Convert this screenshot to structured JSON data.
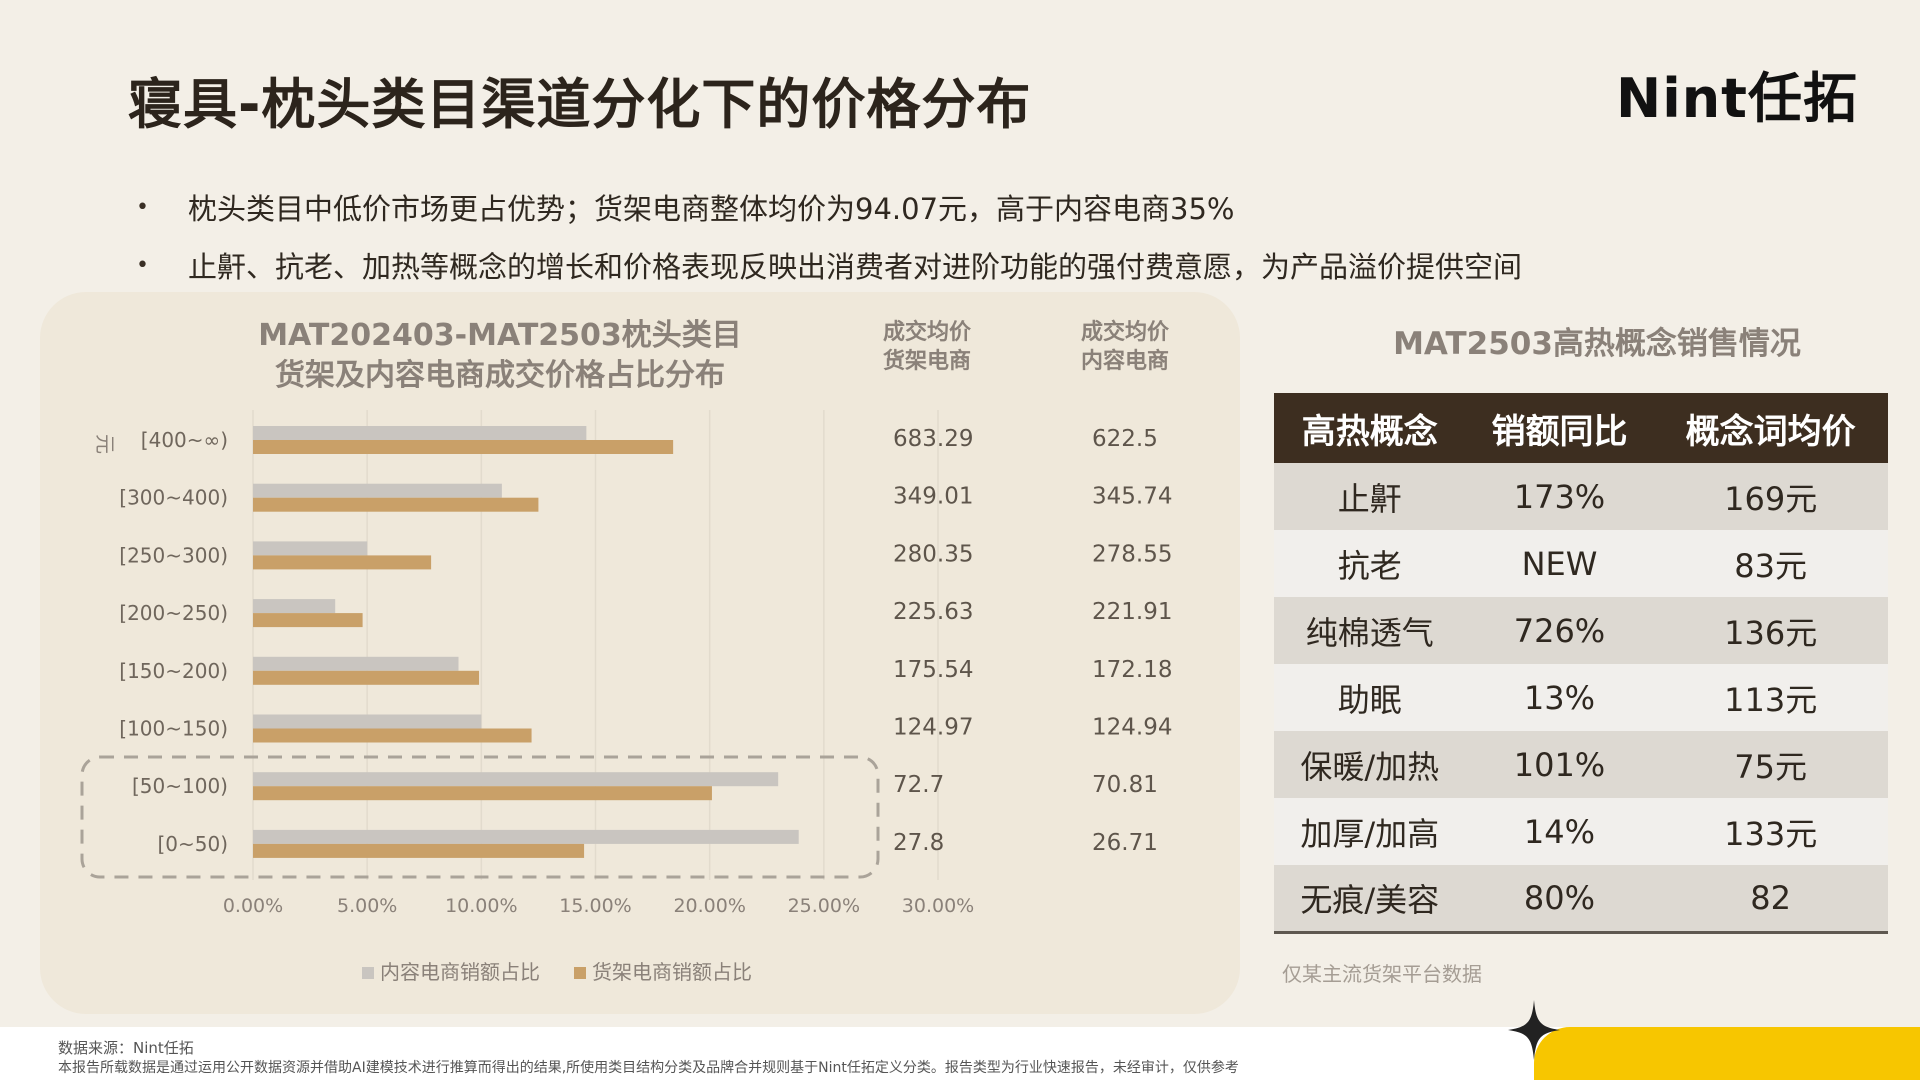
{
  "header": {
    "title": "寝具-枕头类目渠道分化下的价格分布",
    "logo": "Nint任拓"
  },
  "bullets": [
    "枕头类目中低价市场更占优势；货架电商整体均价为94.07元，高于内容电商35%",
    "止鼾、抗老、加热等概念的增长和价格表现反映出消费者对进阶功能的强付费意愿，为产品溢价提供空间"
  ],
  "chart_data": {
    "type": "bar",
    "orientation": "horizontal",
    "title": "MAT202403-MAT2503枕头类目货架及内容电商成交价格占比分布",
    "title_lines": [
      "MAT202403-MAT2503枕头类目",
      "货架及内容电商成交价格占比分布"
    ],
    "ylabel": "元",
    "categories": [
      "[400~∞)",
      "[300~400)",
      "[250~300)",
      "[200~250)",
      "[150~200)",
      "[100~150)",
      "[50~100)",
      "[0~50)"
    ],
    "series": [
      {
        "name": "内容电商销额占比",
        "color": "#c9c5c0",
        "values": [
          14.6,
          10.9,
          5.0,
          3.6,
          9.0,
          10.0,
          23.0,
          23.9
        ]
      },
      {
        "name": "货架电商销额占比",
        "color": "#c9a068",
        "values": [
          18.4,
          12.5,
          7.8,
          4.8,
          9.9,
          12.2,
          20.1,
          14.5
        ]
      }
    ],
    "xlim": [
      0,
      30
    ],
    "xticks": [
      "0.00%",
      "5.00%",
      "10.00%",
      "15.00%",
      "20.00%",
      "25.00%",
      "30.00%"
    ],
    "legend_position": "bottom",
    "grid": true,
    "annotation": "dashed box highlighting [50~100) and [0~50)",
    "columns": [
      {
        "label_line1": "成交均价",
        "label_line2": "货架电商",
        "values": [
          "683.29",
          "349.01",
          "280.35",
          "225.63",
          "175.54",
          "124.97",
          "72.7",
          "27.8"
        ]
      },
      {
        "label_line1": "成交均价",
        "label_line2": "内容电商",
        "values": [
          "622.5",
          "345.74",
          "278.55",
          "221.91",
          "172.18",
          "124.94",
          "70.81",
          "26.71"
        ]
      }
    ]
  },
  "concept_table": {
    "title": "MAT2503高热概念销售情况",
    "headers": [
      "高热概念",
      "销额同比",
      "概念词均价"
    ],
    "rows": [
      [
        "止鼾",
        "173%",
        "169元"
      ],
      [
        "抗老",
        "NEW",
        "83元"
      ],
      [
        "纯棉透气",
        "726%",
        "136元"
      ],
      [
        "助眠",
        "13%",
        "113元"
      ],
      [
        "保暖/加热",
        "101%",
        "75元"
      ],
      [
        "加厚/加高",
        "14%",
        "133元"
      ],
      [
        "无痕/美容",
        "80%",
        "82"
      ]
    ],
    "note": "仅某主流货架平台数据"
  },
  "footer": {
    "source": "数据来源：Nint任拓",
    "disclaimer": "本报告所载数据是通过运用公开数据资源并借助AI建模技术进行推算而得出的结果,所使用类目结构分类及品牌合并规则基于Nint任拓定义分类。报告类型为行业快速报告，未经审计，仅供参考"
  },
  "colors": {
    "accent_yellow": "#f7c600",
    "table_header": "#3d2e20",
    "gray_bar": "#c9c5c0",
    "gold_bar": "#c9a068"
  }
}
